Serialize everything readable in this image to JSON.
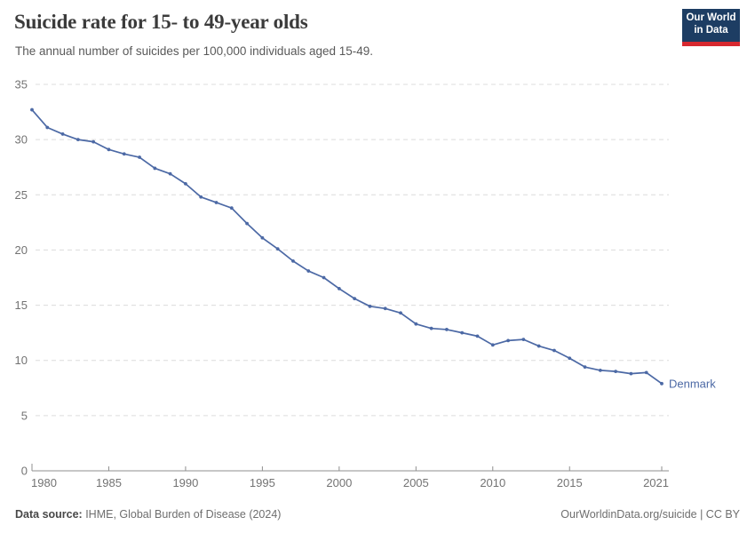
{
  "header": {
    "title": "Suicide rate for 15- to 49-year olds",
    "subtitle": "The annual number of suicides per 100,000 individuals aged 15-49.",
    "logo": {
      "line1": "Our World",
      "line2": "in Data"
    }
  },
  "footer": {
    "source_label": "Data source:",
    "source_text": " IHME, Global Burden of Disease (2024)",
    "credit": "OurWorldinData.org/suicide | CC BY"
  },
  "colors": {
    "line": "#4c69a5",
    "end_label": "#4c69a5",
    "grid": "#dcdcdc",
    "axis": "#8f8f8f",
    "tick_label": "#737373",
    "logo_bg": "#1d3d63",
    "logo_red": "#d7282f"
  },
  "chart_data": {
    "type": "line",
    "title": "Suicide rate for 15- to 49-year olds",
    "subtitle": "The annual number of suicides per 100,000 individuals aged 15-49.",
    "xlabel": "",
    "ylabel": "",
    "x": [
      1980,
      1981,
      1982,
      1983,
      1984,
      1985,
      1986,
      1987,
      1988,
      1989,
      1990,
      1991,
      1992,
      1993,
      1994,
      1995,
      1996,
      1997,
      1998,
      1999,
      2000,
      2001,
      2002,
      2003,
      2004,
      2005,
      2006,
      2007,
      2008,
      2009,
      2010,
      2011,
      2012,
      2013,
      2014,
      2015,
      2016,
      2017,
      2018,
      2019,
      2020,
      2021
    ],
    "series": [
      {
        "name": "Denmark",
        "values": [
          32.7,
          31.1,
          30.5,
          30.0,
          29.8,
          29.1,
          28.7,
          28.4,
          27.4,
          26.9,
          26.0,
          24.8,
          24.3,
          23.8,
          22.4,
          21.1,
          20.1,
          19.0,
          18.1,
          17.5,
          16.5,
          15.6,
          14.9,
          14.7,
          14.3,
          13.3,
          12.9,
          12.8,
          12.5,
          12.2,
          11.4,
          11.8,
          11.9,
          11.3,
          10.9,
          10.2,
          9.4,
          9.1,
          9.0,
          8.8,
          8.9,
          7.9
        ]
      }
    ],
    "ylim": [
      0,
      35
    ],
    "yticks": [
      0,
      5,
      10,
      15,
      20,
      25,
      30,
      35
    ],
    "xticks": [
      1980,
      1985,
      1990,
      1995,
      2000,
      2005,
      2010,
      2015,
      2021
    ],
    "grid": "horizontal-dashed",
    "legend_position": "end-of-line-label",
    "markers": true
  }
}
